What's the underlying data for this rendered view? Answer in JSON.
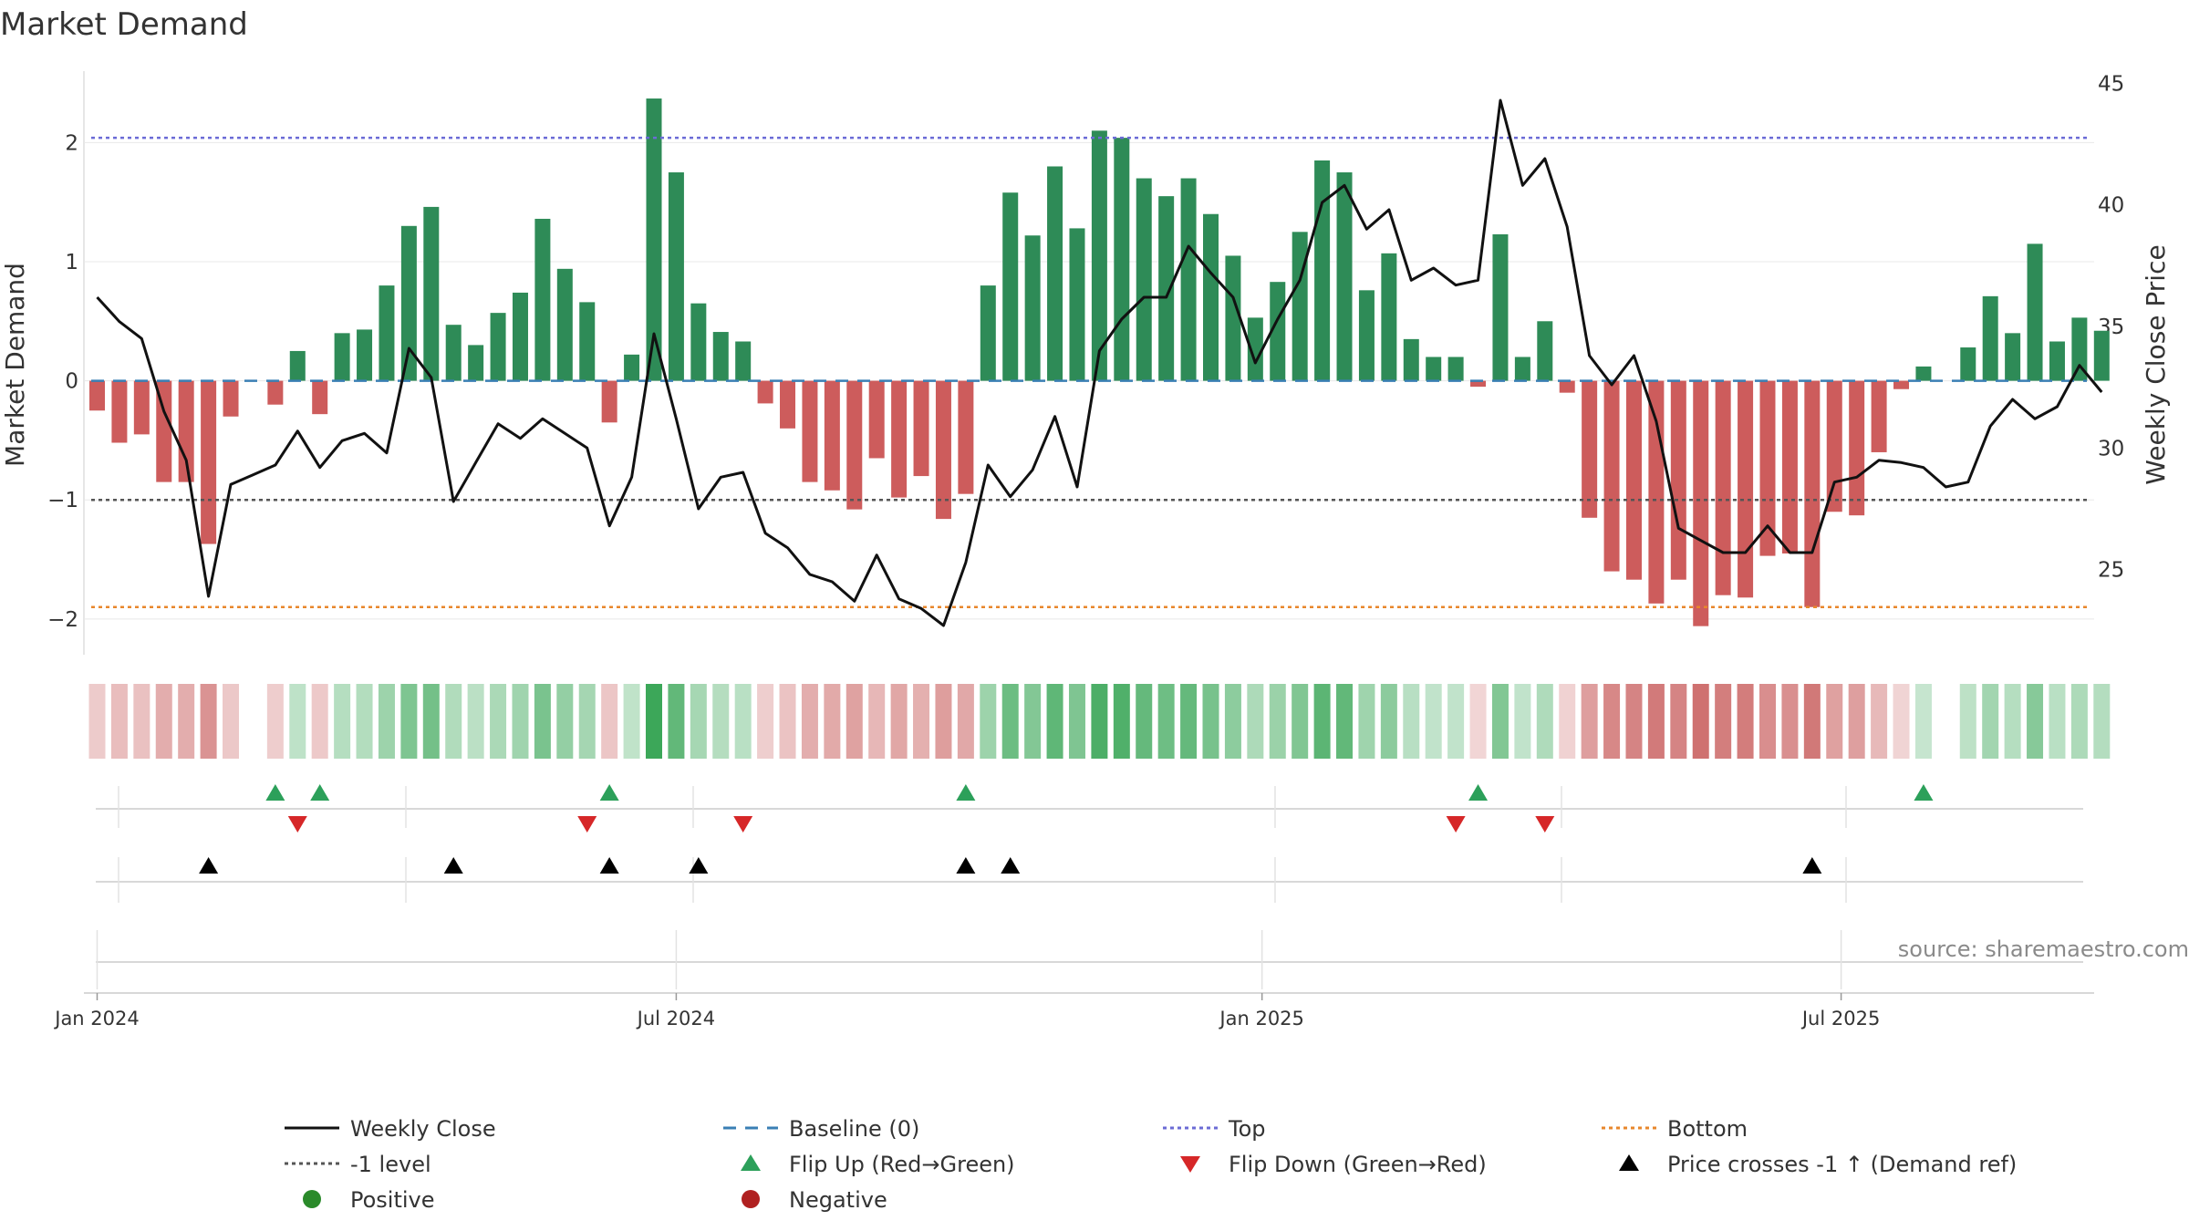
{
  "chart_data": {
    "type": "bar",
    "title": "Market Demand",
    "ylabel_left": "Market Demand",
    "ylabel_right": "Weekly Close Price",
    "ylim_left": [
      -2.3,
      2.6
    ],
    "ylim_right": [
      21.5,
      45.5
    ],
    "yticks_left": [
      {
        "value": -2,
        "label": "−2"
      },
      {
        "value": -1,
        "label": "−1"
      },
      {
        "value": 0,
        "label": "0"
      },
      {
        "value": 1,
        "label": "1"
      },
      {
        "value": 2,
        "label": "2"
      }
    ],
    "yticks_right": [
      {
        "value": 25,
        "label": "25"
      },
      {
        "value": 30,
        "label": "30"
      },
      {
        "value": 35,
        "label": "35"
      },
      {
        "value": 40,
        "label": "40"
      },
      {
        "value": 45,
        "label": "45"
      }
    ],
    "x_week_start": "2024-01-05",
    "xticks": [
      {
        "week": 0,
        "label": "Jan 2024"
      },
      {
        "week": 26,
        "label": "Jul 2024"
      },
      {
        "week": 52.3,
        "label": "Jan 2025"
      },
      {
        "week": 78.3,
        "label": "Jul 2025"
      }
    ],
    "reference_lines": {
      "baseline": 0,
      "top": 2.04,
      "minus_one": -1,
      "bottom": -1.9
    },
    "demand": [
      -0.25,
      -0.52,
      -0.45,
      -0.85,
      -0.85,
      -1.37,
      -0.3,
      0,
      -0.2,
      0.25,
      -0.28,
      0.4,
      0.43,
      0.8,
      1.3,
      1.46,
      0.47,
      0.3,
      0.57,
      0.74,
      1.36,
      0.94,
      0.66,
      -0.35,
      0.22,
      2.37,
      1.75,
      0.65,
      0.41,
      0.33,
      -0.19,
      -0.4,
      -0.85,
      -0.92,
      -1.08,
      -0.65,
      -0.98,
      -0.8,
      -1.16,
      -0.95,
      0.8,
      1.58,
      1.22,
      1.8,
      1.28,
      2.1,
      2.04,
      1.7,
      1.55,
      1.7,
      1.4,
      1.05,
      0.53,
      0.83,
      1.25,
      1.85,
      1.75,
      0.76,
      1.07,
      0.35,
      0.2,
      0.2,
      -0.05,
      1.23,
      0.2,
      0.5,
      -0.1,
      -1.15,
      -1.6,
      -1.67,
      -1.87,
      -1.67,
      -2.06,
      -1.8,
      -1.82,
      -1.47,
      -1.45,
      -1.9,
      -1.1,
      -1.13,
      -0.6,
      -0.07,
      0.12,
      0,
      0.28,
      0.71,
      0.4,
      1.15,
      0.33,
      0.53,
      0.42
    ],
    "close": [
      36.2,
      35.2,
      34.5,
      31.5,
      29.5,
      23.9,
      28.5,
      28.9,
      29.3,
      30.7,
      29.2,
      30.3,
      30.6,
      29.8,
      34.1,
      32.9,
      27.8,
      29.4,
      31.0,
      30.4,
      31.2,
      30.6,
      30.0,
      26.8,
      28.8,
      34.7,
      31.2,
      27.5,
      28.8,
      29.0,
      26.5,
      25.9,
      24.8,
      24.5,
      23.7,
      25.6,
      23.8,
      23.4,
      22.7,
      25.3,
      29.3,
      28.0,
      29.1,
      31.3,
      28.4,
      34.0,
      35.3,
      36.2,
      36.2,
      38.3,
      37.2,
      36.2,
      33.5,
      35.3,
      36.9,
      40.1,
      40.8,
      39.0,
      39.8,
      36.9,
      37.4,
      36.7,
      36.9,
      44.3,
      40.8,
      41.9,
      39.1,
      33.8,
      32.6,
      33.8,
      31.1,
      26.7,
      26.2,
      25.7,
      25.7,
      26.8,
      25.7,
      25.7,
      28.6,
      28.8,
      29.5,
      29.4,
      29.2,
      28.4,
      28.6,
      30.9,
      32.0,
      31.2,
      31.7,
      33.4,
      32.3
    ],
    "flip_up_weeks": [
      8,
      10,
      23,
      39,
      62,
      82
    ],
    "flip_down_weeks": [
      9,
      22,
      29,
      61,
      65
    ],
    "price_cross_weeks": [
      5,
      16,
      23,
      27,
      39,
      41,
      77
    ],
    "legend": [
      {
        "label": "Weekly Close",
        "kind": "line-solid",
        "color": "#111111"
      },
      {
        "label": "Baseline (0)",
        "kind": "line-dash",
        "color": "#3a7fb4"
      },
      {
        "label": "Top",
        "kind": "line-dot",
        "color": "#6b6bd6"
      },
      {
        "label": "Bottom",
        "kind": "line-dot",
        "color": "#e8872c"
      },
      {
        "label": "-1 level",
        "kind": "line-dot",
        "color": "#555555"
      },
      {
        "label": "Flip Up (Red→Green)",
        "kind": "tri-up",
        "color": "#2ca05a"
      },
      {
        "label": "Flip Down (Green→Red)",
        "kind": "tri-down",
        "color": "#d62728"
      },
      {
        "label": "Price crosses -1 ↑ (Demand ref)",
        "kind": "tri-up",
        "color": "#000000"
      },
      {
        "label": "Positive",
        "kind": "circle",
        "color": "#2a8a2a"
      },
      {
        "label": "Negative",
        "kind": "circle",
        "color": "#b02020"
      }
    ],
    "source": "source: sharemaestro.com",
    "colors": {
      "positive_bar": "#2e8b57",
      "negative_bar": "#cd5c5c",
      "close_line": "#111111",
      "baseline": "#3a7fb4",
      "top": "#6b6bd6",
      "bottom": "#e8872c",
      "minus_one": "#555555",
      "flip_up": "#2ca05a",
      "flip_down": "#d62728",
      "price_cross": "#000000",
      "heat_positive": "#3aa657",
      "heat_negative": "#c9605f"
    }
  }
}
